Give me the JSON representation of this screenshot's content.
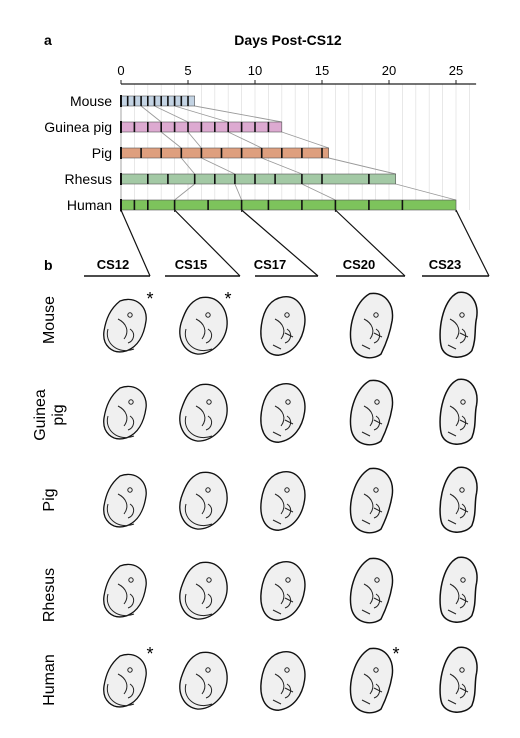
{
  "chart_data": {
    "type": "bar",
    "panel_label_a": "a",
    "panel_label_b": "b",
    "title": "Days Post-CS12",
    "x_ticks": [
      0,
      5,
      10,
      15,
      20,
      25
    ],
    "xlim": [
      0,
      26.5
    ],
    "grid": true,
    "series": [
      {
        "name": "Mouse",
        "color": "#c3d3e3",
        "end_day": 5.5,
        "marks": [
          0.5,
          1,
          1.5,
          2,
          2.5,
          3,
          3.5,
          4,
          4.5,
          5
        ]
      },
      {
        "name": "Guinea pig",
        "color": "#ddaad1",
        "end_day": 12,
        "marks": [
          1,
          2,
          3,
          4,
          5,
          6,
          7,
          8,
          9,
          10,
          11
        ]
      },
      {
        "name": "Pig",
        "color": "#de9f7e",
        "end_day": 15.5,
        "marks": [
          1.5,
          3,
          4.5,
          6,
          7.5,
          9,
          10.5,
          12,
          13.5,
          15
        ]
      },
      {
        "name": "Rhesus",
        "color": "#a3c9a5",
        "end_day": 20.5,
        "marks": [
          2,
          3.5,
          5.5,
          7,
          8.5,
          10,
          11.5,
          13.5,
          15,
          18.5
        ]
      },
      {
        "name": "Human",
        "color": "#7dc35c",
        "end_day": 25,
        "marks": [
          1,
          2,
          4,
          6.5,
          9,
          11,
          13.5,
          16,
          18.5,
          21
        ]
      }
    ],
    "stage_marks": [
      "CS12",
      "CS15",
      "CS17",
      "CS20",
      "CS23"
    ],
    "stage_days": {
      "Mouse": [
        0,
        1.5,
        2.5,
        4,
        5.5
      ],
      "Guinea pig": [
        0,
        3,
        5,
        8,
        12
      ],
      "Pig": [
        0,
        4.5,
        6,
        10.5,
        15.5
      ],
      "Rhesus": [
        0,
        5.5,
        8.5,
        13.5,
        20.5
      ],
      "Human": [
        0,
        4,
        9,
        16,
        25
      ]
    },
    "stage_axis": [
      {
        "label": "CS12",
        "day_start": 0,
        "day_end": 2.5
      },
      {
        "label": "CS15",
        "day_start": 4,
        "day_end": 8.5
      },
      {
        "label": "CS17",
        "day_start": 9,
        "day_end": 15
      },
      {
        "label": "CS20",
        "day_start": 16,
        "day_end": 21
      },
      {
        "label": "CS23",
        "day_start": 25,
        "day_end": 27
      }
    ],
    "row_labels": [
      "Mouse",
      "Guinea\npig",
      "Pig",
      "Rhesus",
      "Human"
    ],
    "asterisk_text": "*",
    "asterisks": [
      {
        "row": 0,
        "col": 0
      },
      {
        "row": 0,
        "col": 1
      },
      {
        "row": 4,
        "col": 0
      },
      {
        "row": 4,
        "col": 3
      }
    ]
  }
}
